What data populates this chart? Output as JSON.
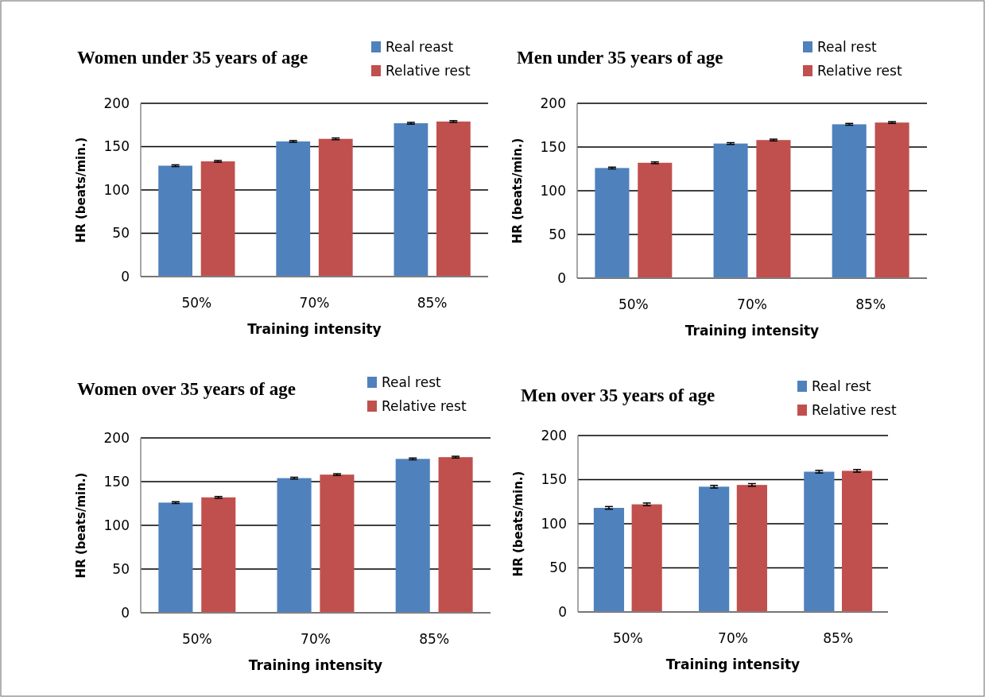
{
  "chart_data": [
    {
      "type": "bar",
      "title": "Women under 35 years of age",
      "xlabel": "Training intensity",
      "ylabel": "HR (beats/min.)",
      "categories": [
        "50%",
        "70%",
        "85%"
      ],
      "series": [
        {
          "name": "Real reast",
          "color": "#4f81bd",
          "values": [
            128,
            156,
            177
          ],
          "errors": [
            1,
            1,
            1
          ]
        },
        {
          "name": "Relative rest",
          "color": "#c0504d",
          "values": [
            133,
            159,
            179
          ],
          "errors": [
            1,
            1,
            1
          ]
        }
      ],
      "ylim": [
        0,
        200
      ],
      "yticks": [
        0,
        50,
        100,
        150,
        200
      ],
      "grid": "y",
      "legend": "top right"
    },
    {
      "type": "bar",
      "title": "Men under 35 years of age",
      "xlabel": "Training intensity",
      "ylabel": "HR (beats/min.)",
      "categories": [
        "50%",
        "70%",
        "85%"
      ],
      "series": [
        {
          "name": "Real rest",
          "color": "#4f81bd",
          "values": [
            126,
            154,
            176
          ],
          "errors": [
            1,
            1,
            1
          ]
        },
        {
          "name": "Relative rest",
          "color": "#c0504d",
          "values": [
            132,
            158,
            178
          ],
          "errors": [
            1,
            1,
            1
          ]
        }
      ],
      "ylim": [
        0,
        200
      ],
      "yticks": [
        0,
        50,
        100,
        150,
        200
      ],
      "grid": "y",
      "legend": "top right"
    },
    {
      "type": "bar",
      "title": "Women over 35 years of age",
      "xlabel": "Training intensity",
      "ylabel": "HR (beats/min.)",
      "categories": [
        "50%",
        "70%",
        "85%"
      ],
      "series": [
        {
          "name": "Real rest",
          "color": "#4f81bd",
          "values": [
            126,
            154,
            176
          ],
          "errors": [
            1,
            1,
            1
          ]
        },
        {
          "name": "Relative rest",
          "color": "#c0504d",
          "values": [
            132,
            158,
            178
          ],
          "errors": [
            1,
            1,
            1
          ]
        }
      ],
      "ylim": [
        0,
        200
      ],
      "yticks": [
        0,
        50,
        100,
        150,
        200
      ],
      "grid": "y",
      "legend": "top right"
    },
    {
      "type": "bar",
      "title": "Men over 35 years of age",
      "xlabel": "Training intensity",
      "ylabel": "HR (beats/min.)",
      "categories": [
        "50%",
        "70%",
        "85%"
      ],
      "series": [
        {
          "name": "Real rest",
          "color": "#4f81bd",
          "values": [
            118,
            142,
            159
          ],
          "errors": [
            1.5,
            1.5,
            1.5
          ]
        },
        {
          "name": "Relative rest",
          "color": "#c0504d",
          "values": [
            122,
            144,
            160
          ],
          "errors": [
            1.5,
            1.5,
            1.5
          ]
        }
      ],
      "ylim": [
        0,
        200
      ],
      "yticks": [
        0,
        50,
        100,
        150,
        200
      ],
      "grid": "y",
      "legend": "top right"
    }
  ]
}
